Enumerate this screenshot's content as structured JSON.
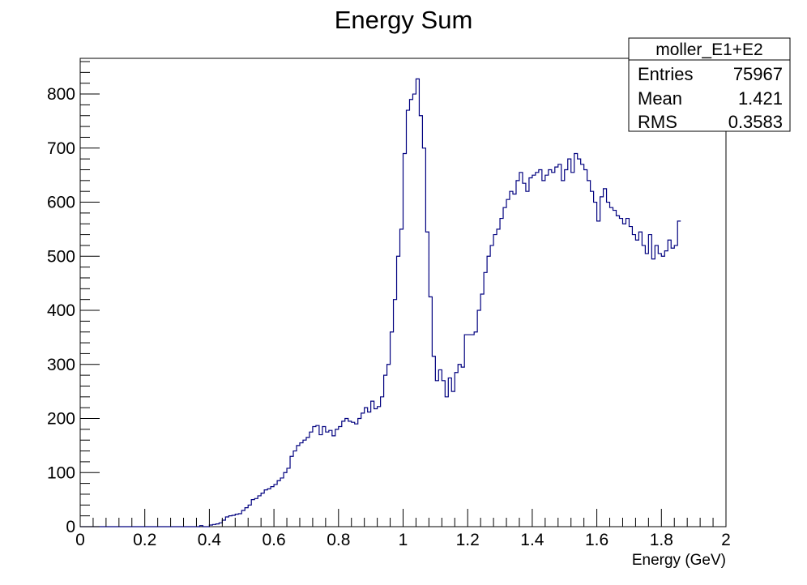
{
  "chart_data": {
    "type": "histogram",
    "title": "Energy Sum",
    "xlabel": "Energy (GeV)",
    "ylabel": "",
    "xlim": [
      0,
      2
    ],
    "ylim": [
      0,
      866
    ],
    "x_ticks": [
      "0",
      "0.2",
      "0.4",
      "0.6",
      "0.8",
      "1",
      "1.2",
      "1.4",
      "1.6",
      "1.8",
      "2"
    ],
    "x_tick_values": [
      0,
      0.2,
      0.4,
      0.6,
      0.8,
      1.0,
      1.2,
      1.4,
      1.6,
      1.8,
      2.0
    ],
    "y_ticks": [
      "0",
      "100",
      "200",
      "300",
      "400",
      "500",
      "600",
      "700",
      "800"
    ],
    "y_tick_values": [
      0,
      100,
      200,
      300,
      400,
      500,
      600,
      700,
      800
    ],
    "bin_width": 0.01,
    "bin_start": 0.0,
    "line_color": "#00007f",
    "values": [
      0,
      0,
      0,
      0,
      0,
      0,
      0,
      0,
      0,
      0,
      0,
      0,
      0,
      0,
      0,
      0,
      0,
      0,
      0,
      0,
      0,
      0,
      0,
      0,
      0,
      0,
      0,
      0,
      0,
      0,
      0,
      0,
      0,
      0,
      0,
      0,
      0,
      2,
      0,
      0,
      3,
      4,
      5,
      7,
      12,
      18,
      20,
      21,
      23,
      24,
      30,
      35,
      40,
      50,
      52,
      57,
      62,
      68,
      70,
      74,
      78,
      85,
      90,
      100,
      108,
      130,
      140,
      150,
      155,
      160,
      165,
      175,
      185,
      187,
      170,
      185,
      175,
      178,
      168,
      180,
      185,
      195,
      200,
      195,
      193,
      190,
      200,
      210,
      220,
      212,
      232,
      218,
      222,
      240,
      280,
      300,
      360,
      420,
      500,
      550,
      690,
      770,
      790,
      800,
      828,
      760,
      700,
      545,
      425,
      315,
      270,
      290,
      270,
      240,
      275,
      250,
      285,
      300,
      295,
      355,
      355,
      355,
      360,
      400,
      430,
      470,
      500,
      520,
      540,
      550,
      570,
      590,
      605,
      620,
      615,
      640,
      655,
      635,
      620,
      645,
      650,
      655,
      660,
      640,
      650,
      660,
      655,
      665,
      670,
      640,
      660,
      680,
      655,
      690,
      680,
      670,
      660,
      640,
      620,
      600,
      565,
      610,
      625,
      600,
      590,
      585,
      575,
      570,
      560,
      570,
      555,
      540,
      530,
      545,
      520,
      505,
      540,
      495,
      520,
      505,
      500,
      510,
      530,
      515,
      520,
      565
    ]
  },
  "stats_box": {
    "title": "moller_E1+E2",
    "rows": [
      {
        "label": "Entries",
        "value": "75967"
      },
      {
        "label": "Mean",
        "value": "1.421"
      },
      {
        "label": "RMS",
        "value": "0.3583"
      }
    ]
  }
}
